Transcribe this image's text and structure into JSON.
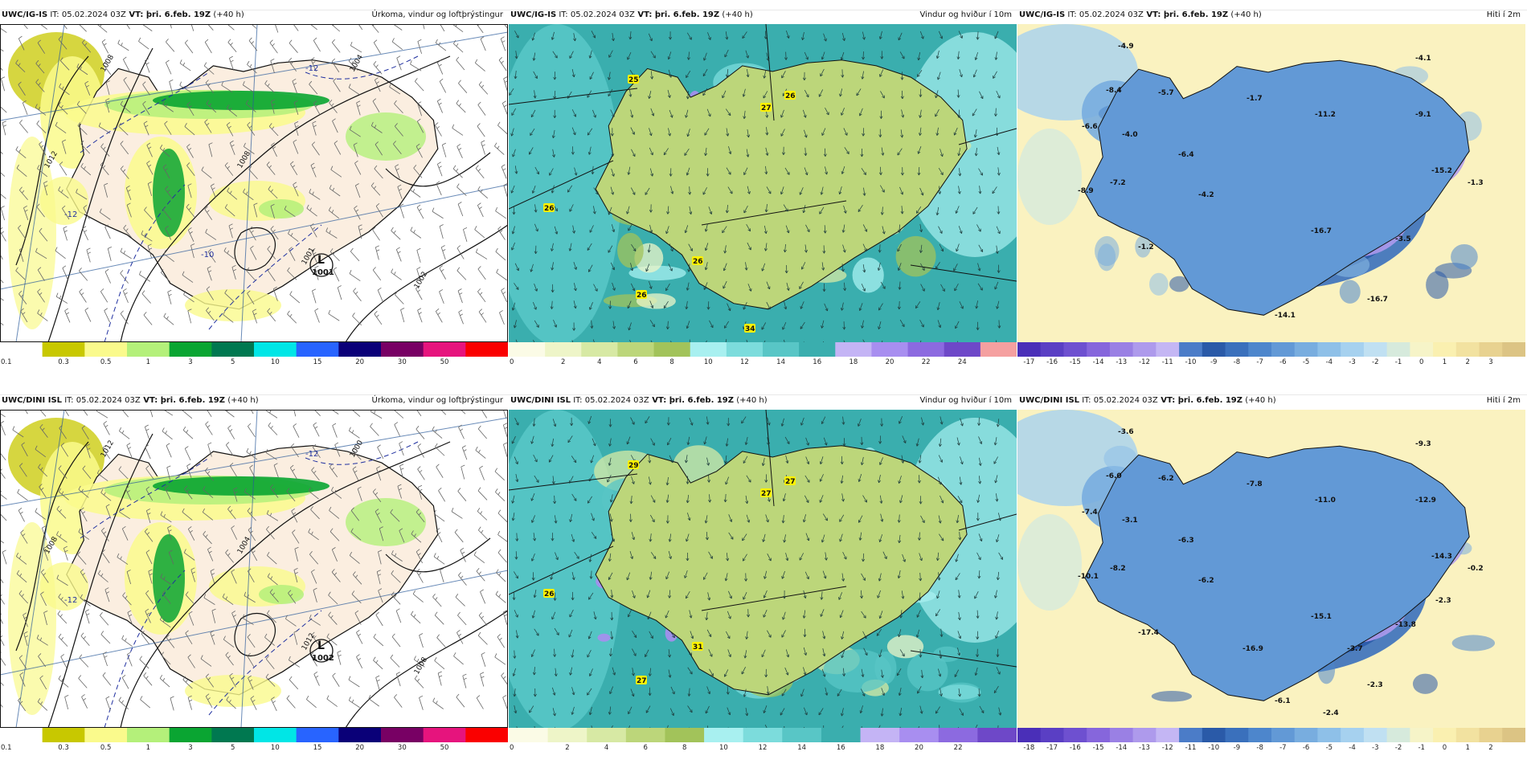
{
  "panels": [
    {
      "key": "p1",
      "model": "UWC/IG-IS",
      "it_label": "IT:",
      "it_value": "05.02.2024 03Z",
      "vt_label": "VT:",
      "vt_value": "þri. 6.feb. 19Z",
      "lead": "(+40 h)",
      "title": "Úrkoma, vindur og loftþrýstingur",
      "style": "precip",
      "scale": [
        "0.1",
        "0.3",
        "0.5",
        "1",
        "3",
        "5",
        "10",
        "15",
        "20",
        "30",
        "50"
      ],
      "pressure_labels": [
        "1008",
        "1012",
        "1008",
        "1004",
        "1001",
        "1002"
      ],
      "low_label": "L",
      "low_value": "1001",
      "temp_labels": [
        "-12",
        "-12",
        "-10"
      ]
    },
    {
      "key": "p2",
      "model": "UWC/IG-IS",
      "it_label": "IT:",
      "it_value": "05.02.2024 03Z",
      "vt_label": "VT:",
      "vt_value": "þri. 6.feb. 19Z",
      "lead": "(+40 h)",
      "title": "Vindur og hviður í 10m",
      "style": "wind",
      "scale": [
        "0",
        "2",
        "4",
        "6",
        "8",
        "10",
        "12",
        "14",
        "16",
        "18",
        "20",
        "22",
        "24"
      ],
      "gust_labels": [
        "25",
        "27",
        "26",
        "26",
        "26",
        "26",
        "34"
      ]
    },
    {
      "key": "p3",
      "model": "UWC/IG-IS",
      "it_label": "IT:",
      "it_value": "05.02.2024 03Z",
      "vt_label": "VT:",
      "vt_value": "þri. 6.feb. 19Z",
      "lead": "(+40 h)",
      "title": "Hiti í 2m",
      "style": "temp",
      "scale": [
        "-17",
        "-16",
        "-15",
        "-14",
        "-13",
        "-12",
        "-11",
        "-10",
        "-9",
        "-8",
        "-7",
        "-6",
        "-5",
        "-4",
        "-3",
        "-2",
        "-1",
        "0",
        "1",
        "2",
        "3"
      ],
      "temp_values": [
        "-4.9",
        "-4.1",
        "-8.4",
        "-5.7",
        "-6.6",
        "-4.0",
        "-6.4",
        "-1.7",
        "-11.2",
        "-9.1",
        "-15.2",
        "-1.3",
        "-7.2",
        "-8.9",
        "-4.2",
        "-16.7",
        "-3.5",
        "-1.2",
        "-16.7",
        "-14.1"
      ]
    },
    {
      "key": "p4",
      "model": "UWC/DINI ISL",
      "it_label": "IT:",
      "it_value": "05.02.2024 03Z",
      "vt_label": "VT:",
      "vt_value": "þri. 6.feb. 19Z",
      "lead": "(+40 h)",
      "title": "Úrkoma, vindur og loftþrýstingur",
      "style": "precip",
      "scale": [
        "0.1",
        "0.3",
        "0.5",
        "1",
        "3",
        "5",
        "10",
        "15",
        "20",
        "30",
        "50"
      ],
      "pressure_labels": [
        "1012",
        "1008",
        "1004",
        "1000",
        "1012",
        "1008"
      ],
      "low_label": "L",
      "low_value": "1002",
      "temp_labels": [
        "-12",
        "-12"
      ]
    },
    {
      "key": "p5",
      "model": "UWC/DINI ISL",
      "it_label": "IT:",
      "it_value": "05.02.2024 03Z",
      "vt_label": "VT:",
      "vt_value": "þri. 6.feb. 19Z",
      "lead": "(+40 h)",
      "title": "Vindur og hviður í 10m",
      "style": "wind",
      "scale": [
        "0",
        "2",
        "4",
        "6",
        "8",
        "10",
        "12",
        "14",
        "16",
        "18",
        "20",
        "22"
      ],
      "gust_labels": [
        "29",
        "27",
        "27",
        "26",
        "31",
        "27"
      ]
    },
    {
      "key": "p6",
      "model": "UWC/DINI ISL",
      "it_label": "IT:",
      "it_value": "05.02.2024 03Z",
      "vt_label": "VT:",
      "vt_value": "þri. 6.feb. 19Z",
      "lead": "(+40 h)",
      "title": "Hiti í 2m",
      "style": "temp",
      "scale": [
        "-18",
        "-17",
        "-16",
        "-15",
        "-14",
        "-13",
        "-12",
        "-11",
        "-10",
        "-9",
        "-8",
        "-7",
        "-6",
        "-5",
        "-4",
        "-3",
        "-2",
        "-1",
        "0",
        "1",
        "2"
      ],
      "temp_values": [
        "-3.6",
        "-9.3",
        "-6.0",
        "-6.2",
        "-7.4",
        "-3.1",
        "-6.3",
        "-7.8",
        "-11.0",
        "-12.9",
        "-14.3",
        "-0.2",
        "-8.2",
        "-10.1",
        "-6.2",
        "-15.1",
        "-13.8",
        "-17.4",
        "-2.3",
        "-6.1",
        "-2.3",
        "-16.9",
        "-3.7",
        "-2.4"
      ]
    }
  ]
}
